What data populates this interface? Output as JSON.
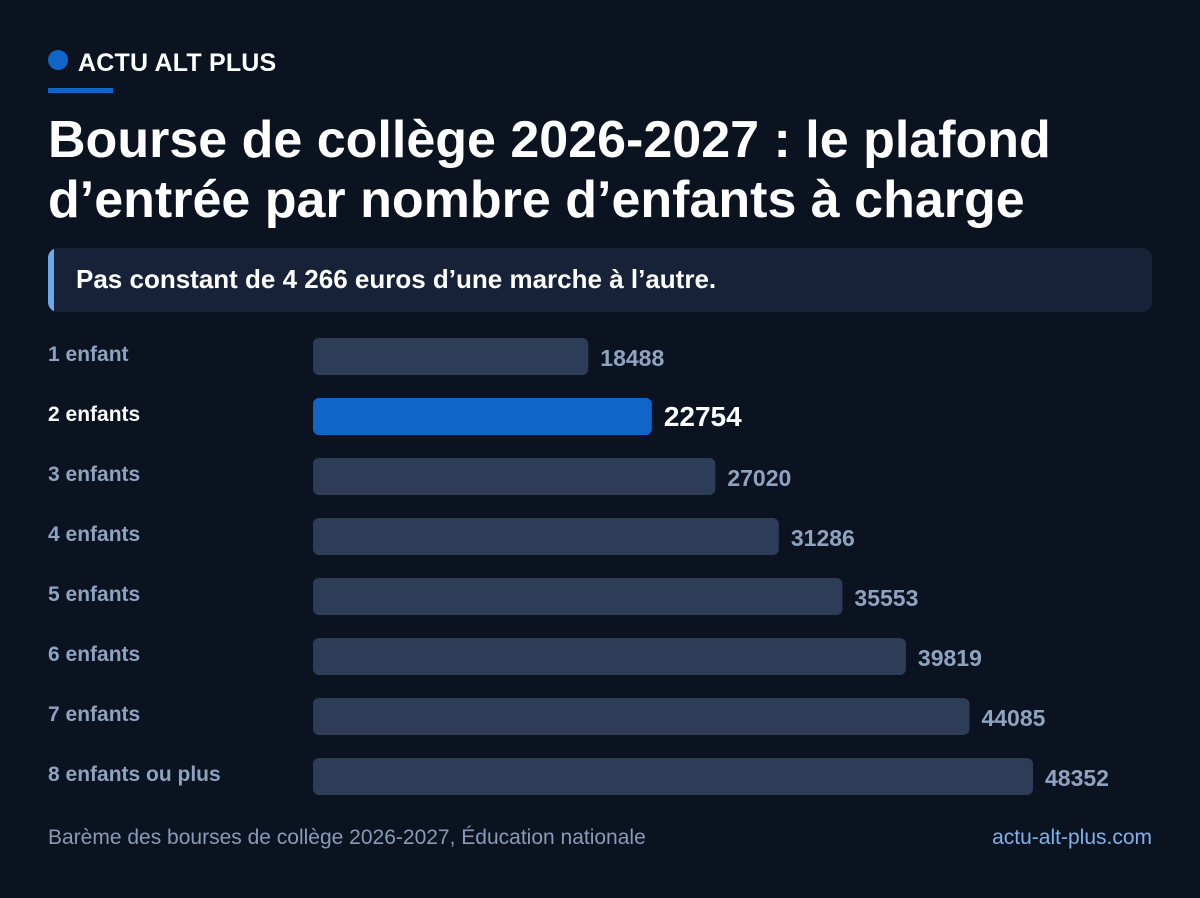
{
  "brand": {
    "name": "ACTU ALT PLUS",
    "accent_color": "#0f66c8"
  },
  "title": "Bourse de collège 2026-2027 : le plafond d’entrée par nombre d’enfants à charge",
  "subtitle": "Pas constant de 4 266 euros d’une marche à l’autre.",
  "chart_data": {
    "type": "bar",
    "orientation": "horizontal",
    "categories": [
      "1 enfant",
      "2 enfants",
      "3 enfants",
      "4 enfants",
      "5 enfants",
      "6 enfants",
      "7 enfants",
      "8 enfants ou plus"
    ],
    "values": [
      18488,
      22754,
      27020,
      31286,
      35553,
      39819,
      44085,
      48352
    ],
    "highlight": "2 enfants",
    "colors": {
      "bar": "#2d3c57",
      "highlight_bar": "#0f66c8",
      "label": "#8fa3c0",
      "highlight_label": "#ffffff"
    },
    "xlim": [
      0,
      52000
    ],
    "grid": false
  },
  "footer": {
    "source": "Barème des bourses de collège 2026-2027, Éducation nationale",
    "site": "actu-alt-plus.com"
  }
}
